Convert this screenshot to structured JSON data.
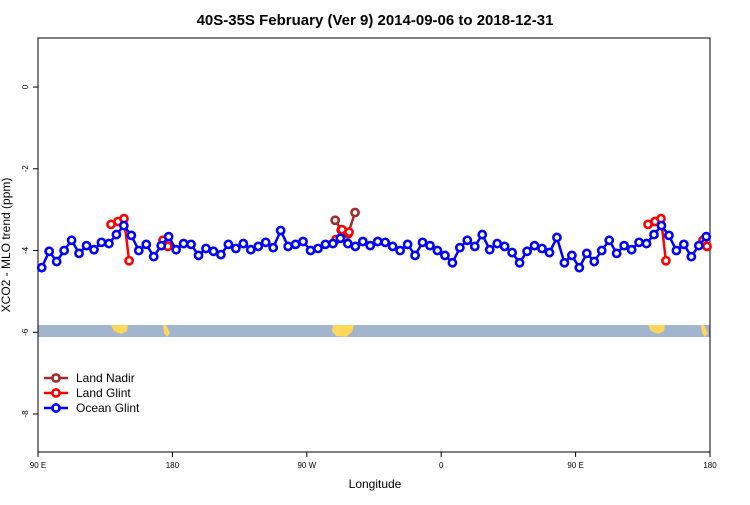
{
  "chart_data": {
    "type": "line",
    "title": "40S-35S February (Ver 9)   2014-09-06 to 2018-12-31",
    "xlabel": "Longitude",
    "ylabel": "XCO2 - MLO trend (ppm)",
    "xlim": [
      90,
      540
    ],
    "ylim": [
      -8.93,
      1.2
    ],
    "xticks": [
      {
        "value": 90,
        "label": "90 E"
      },
      {
        "value": 180,
        "label": "180"
      },
      {
        "value": 270,
        "label": "90 W"
      },
      {
        "value": 360,
        "label": "0"
      },
      {
        "value": 450,
        "label": "90 E"
      },
      {
        "value": 540,
        "label": "180"
      }
    ],
    "yticks": [
      0,
      -2,
      -4,
      -6,
      -8
    ],
    "legend": "bottom-left",
    "series": [
      {
        "name": "Land Nadir",
        "color": "#a02c2c",
        "x": [
          289,
          293,
          297.6,
          302.3
        ],
        "values": [
          -3.26,
          -3.5,
          -3.6,
          -3.07
        ]
      },
      {
        "name": "Land Glint",
        "color": "#ff0000",
        "x": [
          138.9,
          143.6,
          147.6,
          151,
          162,
          173.7,
          177,
          240,
          289.6,
          293.6,
          298.3,
          400,
          498.5,
          503.2,
          507.2,
          510.5,
          520,
          535.3,
          538
        ],
        "values": [
          -3.36,
          -3.29,
          -3.22,
          -4.25,
          null,
          -3.75,
          -3.9,
          null,
          -3.73,
          -3.49,
          -3.55,
          null,
          -3.36,
          -3.29,
          -3.22,
          -4.25,
          null,
          -3.75,
          -3.9
        ]
      },
      {
        "name": "Ocean Glint",
        "color": "#0000ff",
        "x": [
          92.5,
          97.5,
          102.5,
          107.5,
          112.5,
          117.5,
          122.5,
          127.5,
          132.5,
          137.5,
          142.5,
          147.5,
          152.5,
          157.5,
          162.5,
          167.5,
          172.5,
          177.5,
          182.5,
          187.5,
          192.5,
          197.5,
          202.5,
          207.5,
          212.5,
          217.5,
          222.5,
          227.5,
          232.5,
          237.5,
          242.5,
          247.5,
          252.5,
          257.5,
          262.5,
          267.5,
          272.5,
          277.5,
          282.5,
          287.5,
          292.5,
          297.5,
          302.5,
          307.5,
          312.5,
          317.5,
          322.5,
          327.5,
          332.5,
          337.5,
          342.5,
          347.5,
          352.5,
          357.5,
          362.5,
          367.5,
          372.5,
          377.5,
          382.5,
          387.5,
          392.5,
          397.5,
          402.5,
          407.5,
          412.5,
          417.5,
          422.5,
          427.5,
          432.5,
          437.5,
          442.5,
          447.5,
          452.5,
          457.5,
          462.5,
          467.5,
          472.5,
          477.5,
          482.5,
          487.5,
          492.5,
          497.5,
          502.5,
          507.5,
          512.5,
          517.5,
          522.5,
          527.5,
          532.5,
          537.5
        ],
        "values": [
          -4.42,
          -4.02,
          -4.27,
          -4.0,
          -3.75,
          -4.07,
          -3.88,
          -3.98,
          -3.8,
          -3.83,
          -3.61,
          -3.39,
          -3.63,
          -4.0,
          -3.85,
          -4.15,
          -3.88,
          -3.66,
          -3.98,
          -3.83,
          -3.85,
          -4.12,
          -3.95,
          -4.02,
          -4.1,
          -3.85,
          -3.95,
          -3.83,
          -3.98,
          -3.9,
          -3.8,
          -3.93,
          -3.51,
          -3.9,
          -3.85,
          -3.78,
          -4.0,
          -3.95,
          -3.85,
          -3.83,
          -3.7,
          -3.83,
          -3.9,
          -3.78,
          -3.88,
          -3.78,
          -3.8,
          -3.9,
          -4.0,
          -3.85,
          -4.12,
          -3.8,
          -3.88,
          -4.0,
          -4.12,
          -4.3,
          -3.93,
          -3.75,
          -3.9,
          -3.61,
          -3.98,
          -3.83,
          -3.9,
          -4.05,
          -4.3,
          -4.02,
          -3.88,
          -3.95,
          -4.05,
          -3.68,
          -4.3,
          -4.12,
          -4.42,
          -4.07,
          -4.27,
          -4.0,
          -3.75,
          -4.07,
          -3.88,
          -3.98,
          -3.8,
          -3.83,
          -3.61,
          -3.39,
          -3.63,
          -4.0,
          -3.85,
          -4.15,
          -3.88,
          -3.66
        ]
      }
    ]
  }
}
